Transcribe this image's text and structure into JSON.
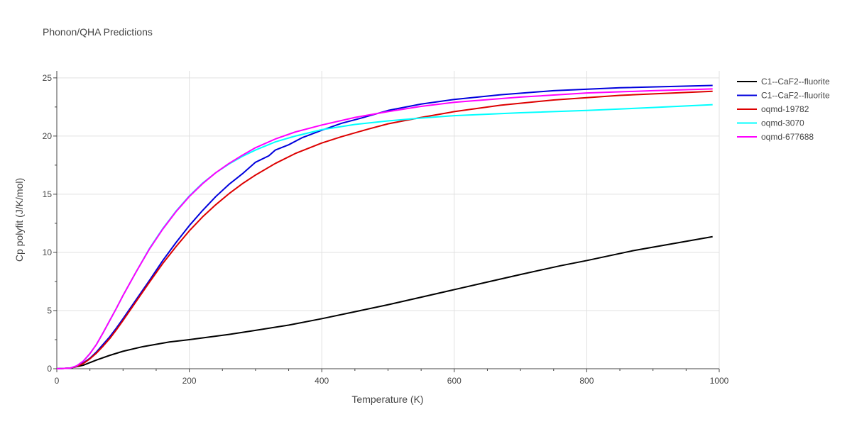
{
  "chart_data": {
    "type": "line",
    "title": "Phonon/QHA Predictions",
    "xlabel": "Temperature (K)",
    "ylabel": "Cp polyfit (J/K/mol)",
    "xlim": [
      0,
      1000
    ],
    "ylim": [
      0,
      25.6
    ],
    "xticks": [
      0,
      200,
      400,
      600,
      800,
      1000
    ],
    "yticks": [
      0,
      5,
      10,
      15,
      20,
      25
    ],
    "grid": true,
    "legend_position": "top-right",
    "series": [
      {
        "name": "C1--CaF2--fluorite",
        "color": "#000000",
        "x": [
          0,
          20,
          40,
          60,
          80,
          100,
          130,
          170,
          200,
          260,
          300,
          350,
          400,
          450,
          500,
          550,
          600,
          650,
          700,
          760,
          800,
          870,
          930,
          990
        ],
        "y": [
          0,
          0.05,
          0.3,
          0.75,
          1.15,
          1.5,
          1.9,
          2.3,
          2.5,
          2.95,
          3.3,
          3.75,
          4.3,
          4.9,
          5.5,
          6.15,
          6.8,
          7.45,
          8.1,
          8.85,
          9.3,
          10.15,
          10.75,
          11.35
        ]
      },
      {
        "name": "C1--CaF2--fluorite",
        "color": "#0000dd",
        "x": [
          0,
          20,
          30,
          40,
          50,
          60,
          70,
          80,
          90,
          100,
          120,
          140,
          160,
          180,
          200,
          220,
          240,
          260,
          280,
          300,
          320,
          330,
          350,
          370,
          400,
          430,
          460,
          500,
          550,
          600,
          670,
          750,
          850,
          990
        ],
        "y": [
          0,
          0.05,
          0.2,
          0.5,
          0.9,
          1.45,
          2.1,
          2.75,
          3.5,
          4.3,
          5.95,
          7.6,
          9.3,
          10.85,
          12.3,
          13.6,
          14.8,
          15.85,
          16.75,
          17.75,
          18.3,
          18.8,
          19.25,
          19.85,
          20.5,
          21.1,
          21.55,
          22.2,
          22.75,
          23.15,
          23.55,
          23.9,
          24.15,
          24.35
        ]
      },
      {
        "name": "oqmd-19782",
        "color": "#dd0000",
        "x": [
          0,
          20,
          30,
          40,
          50,
          60,
          70,
          80,
          90,
          100,
          120,
          140,
          160,
          180,
          200,
          220,
          240,
          260,
          280,
          300,
          330,
          360,
          400,
          430,
          470,
          500,
          550,
          600,
          670,
          750,
          850,
          990
        ],
        "y": [
          0,
          0.05,
          0.2,
          0.45,
          0.85,
          1.35,
          1.95,
          2.6,
          3.35,
          4.15,
          5.8,
          7.45,
          9.05,
          10.5,
          11.85,
          13.05,
          14.1,
          15.05,
          15.9,
          16.65,
          17.65,
          18.5,
          19.4,
          19.95,
          20.6,
          21.05,
          21.6,
          22.1,
          22.65,
          23.1,
          23.5,
          23.85
        ]
      },
      {
        "name": "oqmd-3070",
        "color": "#00ffff",
        "x": [
          0,
          20,
          30,
          40,
          50,
          60,
          70,
          80,
          90,
          100,
          120,
          140,
          160,
          180,
          200,
          220,
          240,
          260,
          280,
          300,
          330,
          360,
          400,
          450,
          500,
          550,
          600,
          700,
          800,
          900,
          990
        ],
        "y": [
          0,
          0.05,
          0.25,
          0.65,
          1.3,
          2.1,
          3.1,
          4.15,
          5.2,
          6.3,
          8.35,
          10.35,
          12.05,
          13.55,
          14.85,
          15.95,
          16.85,
          17.6,
          18.25,
          18.8,
          19.5,
          20.0,
          20.55,
          21.0,
          21.3,
          21.55,
          21.75,
          22.0,
          22.2,
          22.45,
          22.7
        ]
      },
      {
        "name": "oqmd-677688",
        "color": "#ff00ff",
        "x": [
          0,
          20,
          30,
          40,
          50,
          60,
          70,
          80,
          90,
          100,
          120,
          140,
          160,
          180,
          200,
          220,
          240,
          260,
          280,
          300,
          330,
          360,
          400,
          450,
          500,
          550,
          600,
          700,
          800,
          900,
          990
        ],
        "y": [
          0,
          0.05,
          0.25,
          0.65,
          1.3,
          2.1,
          3.1,
          4.15,
          5.2,
          6.3,
          8.35,
          10.3,
          12.0,
          13.5,
          14.8,
          15.9,
          16.85,
          17.65,
          18.35,
          19.0,
          19.75,
          20.35,
          20.95,
          21.6,
          22.1,
          22.55,
          22.9,
          23.35,
          23.7,
          23.9,
          24.05
        ]
      }
    ]
  }
}
